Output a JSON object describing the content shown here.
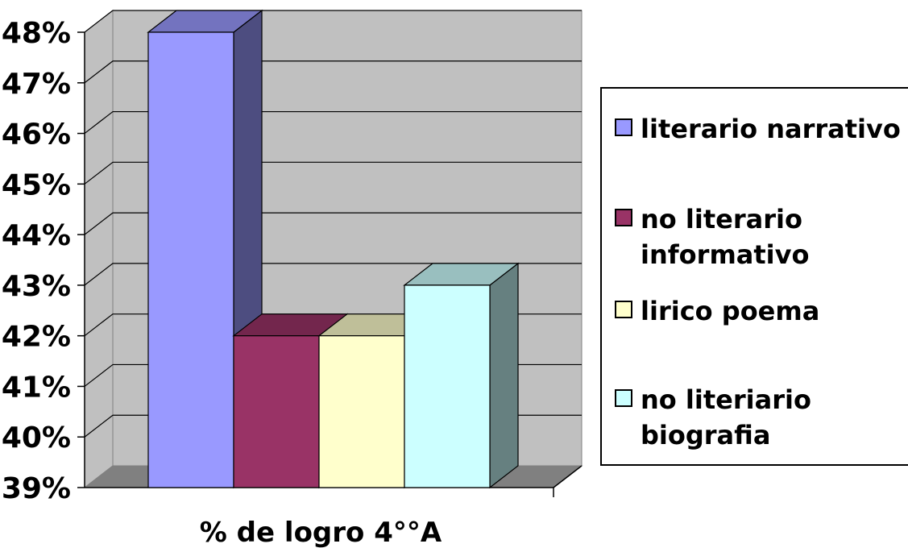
{
  "chart_data": {
    "type": "bar",
    "title": "",
    "xlabel": "% de logro 4°°A",
    "ylabel": "",
    "categories": [
      "% de logro 4°°A"
    ],
    "ylim": [
      39,
      48
    ],
    "yticks": [
      "39%",
      "40%",
      "41%",
      "42%",
      "43%",
      "44%",
      "45%",
      "46%",
      "47%",
      "48%"
    ],
    "grid": true,
    "legend_position": "right",
    "series": [
      {
        "name": "literario narrativo",
        "values": [
          48
        ],
        "color": "#9999ff"
      },
      {
        "name": "no literario informativo",
        "values": [
          42
        ],
        "color": "#993366"
      },
      {
        "name": "lirico poema",
        "values": [
          42
        ],
        "color": "#ffffcc"
      },
      {
        "name": "no literiario biografia",
        "values": [
          43
        ],
        "color": "#ccffff"
      }
    ]
  },
  "legend": {
    "items": [
      {
        "lines": [
          "literario narrativo"
        ]
      },
      {
        "lines": [
          "no literario",
          "informativo"
        ]
      },
      {
        "lines": [
          "lirico poema"
        ]
      },
      {
        "lines": [
          "no literiario",
          "biografia"
        ]
      }
    ]
  }
}
